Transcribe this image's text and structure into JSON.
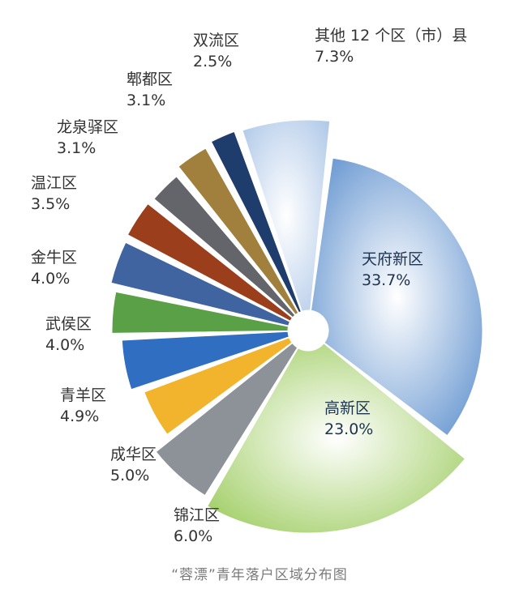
{
  "chart_data": {
    "type": "pie",
    "title": "“蓉漂”青年落户区域分布图",
    "unit": "%",
    "slices": [
      {
        "name": "天府新区",
        "value": 33.7,
        "value_label": "33.7%",
        "color": "#6f9bd2",
        "inside": true
      },
      {
        "name": "高新区",
        "value": 23.0,
        "value_label": "23.0%",
        "color": "#a4cf6a",
        "inside": true
      },
      {
        "name": "锦江区",
        "value": 6.0,
        "value_label": "6.0%",
        "color": "#8d9198"
      },
      {
        "name": "成华区",
        "value": 5.0,
        "value_label": "5.0%",
        "color": "#f2b42c"
      },
      {
        "name": "青羊区",
        "value": 4.9,
        "value_label": "4.9%",
        "color": "#2f6ec0"
      },
      {
        "name": "武侯区",
        "value": 4.0,
        "value_label": "4.0%",
        "color": "#5aa046"
      },
      {
        "name": "金牛区",
        "value": 4.0,
        "value_label": "4.0%",
        "color": "#3f64a0"
      },
      {
        "name": "温江区",
        "value": 3.5,
        "value_label": "3.5%",
        "color": "#9a3e1c"
      },
      {
        "name": "龙泉驿区",
        "value": 3.1,
        "value_label": "3.1%",
        "color": "#63656a"
      },
      {
        "name": "郫都区",
        "value": 3.1,
        "value_label": "3.1%",
        "color": "#a0803c"
      },
      {
        "name": "双流区",
        "value": 2.5,
        "value_label": "2.5%",
        "color": "#1f3d6c"
      },
      {
        "name": "其他 12 个区（市）县",
        "value": 7.3,
        "value_label": "7.3%",
        "color": "#a9c4e6"
      }
    ]
  }
}
